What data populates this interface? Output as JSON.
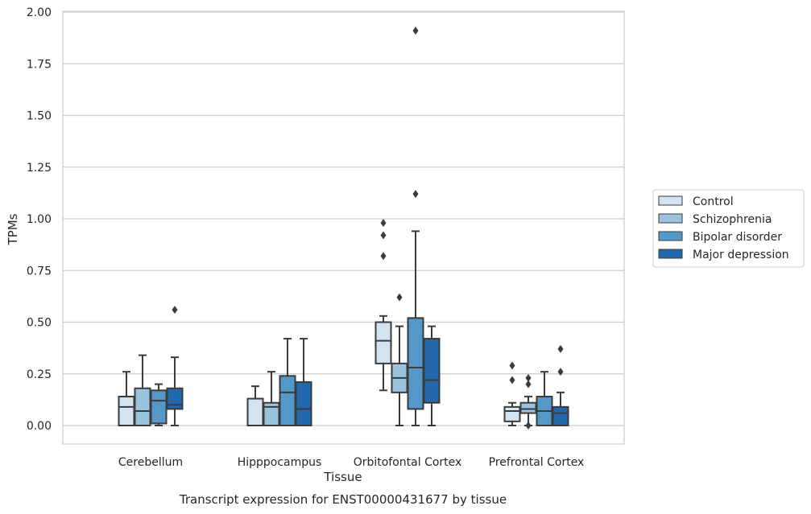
{
  "chart_data": {
    "type": "boxplot",
    "title": "Transcript expression for ENST00000431677 by tissue",
    "xlabel": "Tissue",
    "ylabel": "TPMs",
    "ylim": [
      -0.09,
      2.02
    ],
    "yticks": [
      "0.00",
      "0.25",
      "0.50",
      "0.75",
      "1.00",
      "1.25",
      "1.50",
      "1.75",
      "2.00"
    ],
    "grid": "horizontal",
    "legend_position": "right",
    "categories": [
      "Cerebellum",
      "Hipppocampus",
      "Orbitofontal Cortex",
      "Prefrontal Cortex"
    ],
    "series": [
      {
        "name": "Control",
        "color": "#d3e3f2",
        "boxes": [
          {
            "q1": 0.0,
            "median": 0.09,
            "q3": 0.14,
            "whisker_low": 0.0,
            "whisker_high": 0.26,
            "outliers": []
          },
          {
            "q1": 0.0,
            "median": 0.0,
            "q3": 0.13,
            "whisker_low": 0.0,
            "whisker_high": 0.19,
            "outliers": []
          },
          {
            "q1": 0.3,
            "median": 0.41,
            "q3": 0.5,
            "whisker_low": 0.17,
            "whisker_high": 0.53,
            "outliers": [
              0.82,
              0.92,
              0.98
            ]
          },
          {
            "q1": 0.02,
            "median": 0.07,
            "q3": 0.09,
            "whisker_low": 0.0,
            "whisker_high": 0.11,
            "outliers": [
              0.22,
              0.29
            ]
          }
        ]
      },
      {
        "name": "Schizophrenia",
        "color": "#9ac3dd",
        "boxes": [
          {
            "q1": 0.0,
            "median": 0.07,
            "q3": 0.18,
            "whisker_low": 0.0,
            "whisker_high": 0.34,
            "outliers": []
          },
          {
            "q1": 0.0,
            "median": 0.09,
            "q3": 0.11,
            "whisker_low": 0.0,
            "whisker_high": 0.26,
            "outliers": []
          },
          {
            "q1": 0.16,
            "median": 0.23,
            "q3": 0.3,
            "whisker_low": 0.0,
            "whisker_high": 0.48,
            "outliers": [
              0.62
            ]
          },
          {
            "q1": 0.06,
            "median": 0.08,
            "q3": 0.11,
            "whisker_low": 0.0,
            "whisker_high": 0.14,
            "outliers": [
              0.0,
              0.2,
              0.23
            ]
          }
        ]
      },
      {
        "name": "Bipolar disorder",
        "color": "#5597c6",
        "boxes": [
          {
            "q1": 0.01,
            "median": 0.12,
            "q3": 0.17,
            "whisker_low": 0.0,
            "whisker_high": 0.2,
            "outliers": []
          },
          {
            "q1": 0.0,
            "median": 0.16,
            "q3": 0.24,
            "whisker_low": 0.0,
            "whisker_high": 0.42,
            "outliers": []
          },
          {
            "q1": 0.08,
            "median": 0.28,
            "q3": 0.52,
            "whisker_low": 0.0,
            "whisker_high": 0.94,
            "outliers": [
              1.12,
              1.91
            ]
          },
          {
            "q1": 0.0,
            "median": 0.07,
            "q3": 0.14,
            "whisker_low": 0.0,
            "whisker_high": 0.26,
            "outliers": []
          }
        ]
      },
      {
        "name": "Major depression",
        "color": "#2367ac",
        "boxes": [
          {
            "q1": 0.08,
            "median": 0.1,
            "q3": 0.18,
            "whisker_low": 0.0,
            "whisker_high": 0.33,
            "outliers": [
              0.56
            ]
          },
          {
            "q1": 0.0,
            "median": 0.08,
            "q3": 0.21,
            "whisker_low": 0.0,
            "whisker_high": 0.42,
            "outliers": []
          },
          {
            "q1": 0.11,
            "median": 0.22,
            "q3": 0.42,
            "whisker_low": 0.0,
            "whisker_high": 0.48,
            "outliers": []
          },
          {
            "q1": 0.0,
            "median": 0.06,
            "q3": 0.09,
            "whisker_low": 0.0,
            "whisker_high": 0.16,
            "outliers": [
              0.26,
              0.37
            ]
          }
        ]
      }
    ]
  }
}
